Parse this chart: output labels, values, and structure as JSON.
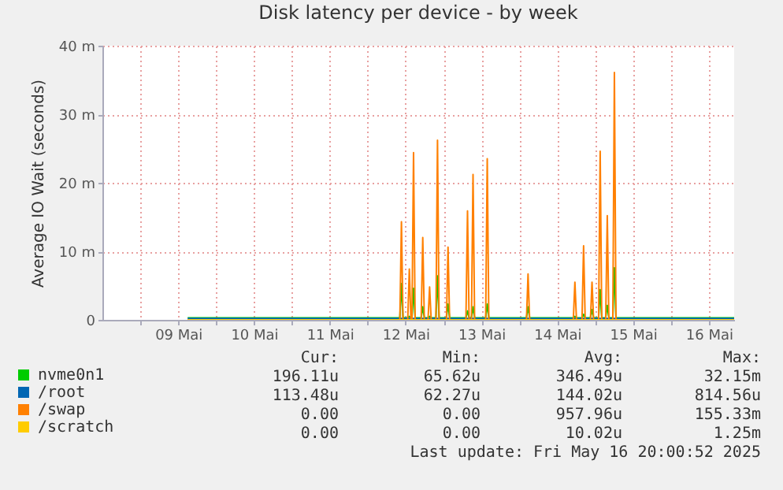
{
  "chart_data": {
    "type": "line",
    "title": "Disk latency per device - by week",
    "ylabel": "Average IO Wait (seconds)",
    "x": [
      "2025-05-09T15:00",
      "2025-05-12T10:10",
      "2025-05-12T10:40",
      "2025-05-12T11:10",
      "2025-05-12T12:40",
      "2025-05-12T13:10",
      "2025-05-12T13:40",
      "2025-05-12T14:00",
      "2025-05-12T14:30",
      "2025-05-12T15:00",
      "2025-05-12T16:55",
      "2025-05-12T17:25",
      "2025-05-12T17:55",
      "2025-05-12T19:05",
      "2025-05-12T19:35",
      "2025-05-12T20:05",
      "2025-05-12T21:35",
      "2025-05-12T22:05",
      "2025-05-12T22:35",
      "2025-05-13T00:55",
      "2025-05-13T01:25",
      "2025-05-13T01:55",
      "2025-05-13T07:05",
      "2025-05-13T07:35",
      "2025-05-13T08:05",
      "2025-05-13T08:50",
      "2025-05-13T09:20",
      "2025-05-13T09:50",
      "2025-05-13T13:20",
      "2025-05-13T13:50",
      "2025-05-13T14:20",
      "2025-05-14T02:15",
      "2025-05-14T02:45",
      "2025-05-14T03:15",
      "2025-05-14T17:05",
      "2025-05-14T17:35",
      "2025-05-14T18:05",
      "2025-05-14T19:50",
      "2025-05-14T20:20",
      "2025-05-14T20:50",
      "2025-05-14T22:30",
      "2025-05-14T23:00",
      "2025-05-14T23:30",
      "2025-05-15T01:05",
      "2025-05-15T01:35",
      "2025-05-15T02:05",
      "2025-05-15T03:20",
      "2025-05-15T03:50",
      "2025-05-15T04:20",
      "2025-05-15T05:35",
      "2025-05-15T06:05",
      "2025-05-15T06:35",
      "2025-05-16T20:00"
    ],
    "series": [
      {
        "name": "nvme0n1",
        "color": "#00cc00",
        "values": [
          0.3,
          0.3,
          5.3,
          0.3,
          0.3,
          0.5,
          0.3,
          0.3,
          4.6,
          0.3,
          0.3,
          1.9,
          0.3,
          0.3,
          0.5,
          0.3,
          0.3,
          6.4,
          0.3,
          0.3,
          2.3,
          0.3,
          0.3,
          1.3,
          0.3,
          0.3,
          1.9,
          0.3,
          0.3,
          2.3,
          0.3,
          0.3,
          1.9,
          0.3,
          0.3,
          0.5,
          0.3,
          0.3,
          0.8,
          0.3,
          0.3,
          1.5,
          0.3,
          0.3,
          4.4,
          0.3,
          0.3,
          2.1,
          0.3,
          0.3,
          7.6,
          0.3,
          0.3
        ]
      },
      {
        "name": "/root",
        "color": "#0066b3",
        "values": [
          0.2,
          0.2,
          0.2,
          0.2,
          0.2,
          0.2,
          0.2,
          0.2,
          0.2,
          0.2,
          0.2,
          0.2,
          0.2,
          0.2,
          0.2,
          0.2,
          0.2,
          0.2,
          0.2,
          0.2,
          0.2,
          0.2,
          0.2,
          0.2,
          0.2,
          0.2,
          0.2,
          0.2,
          0.2,
          0.2,
          0.2,
          0.2,
          0.2,
          0.2,
          0.2,
          0.2,
          0.2,
          0.2,
          0.2,
          0.2,
          0.2,
          0.2,
          0.2,
          0.2,
          0.2,
          0.2,
          0.2,
          0.2,
          0.2,
          0.2,
          0.2,
          0.2,
          0.2
        ]
      },
      {
        "name": "/swap",
        "color": "#ff8000",
        "values": [
          0,
          0,
          14.3,
          0,
          0,
          7.4,
          0,
          0,
          24.4,
          0,
          0,
          12.0,
          0,
          0,
          4.8,
          0,
          0,
          26.2,
          0,
          0,
          10.6,
          0,
          0,
          15.9,
          0,
          0,
          21.2,
          0,
          0,
          23.5,
          0,
          0,
          6.7,
          0,
          0,
          5.5,
          0,
          0,
          10.8,
          0,
          0,
          5.5,
          0,
          0,
          24.6,
          0,
          0,
          15.2,
          0,
          0,
          36.1,
          0,
          0
        ]
      },
      {
        "name": "/scratch",
        "color": "#ffcc00",
        "values": [
          0,
          0,
          0,
          0,
          0,
          0,
          0,
          0,
          0,
          0,
          0,
          0,
          0,
          0,
          0,
          0,
          0,
          0,
          0,
          0,
          0,
          0,
          0,
          0,
          0,
          0,
          0,
          0,
          0,
          0,
          0,
          0,
          0,
          0,
          0,
          0,
          0,
          0,
          0,
          0,
          0,
          0,
          0,
          0,
          0,
          0,
          0,
          0,
          0,
          0,
          0,
          0,
          0
        ]
      }
    ],
    "xlim": [
      "2025-05-08T12:00",
      "2025-05-16T20:00"
    ],
    "xticks": [
      {
        "value": "2025-05-09T00:00",
        "label": null
      },
      {
        "value": "2025-05-09T12:00",
        "label": "09 Mai"
      },
      {
        "value": "2025-05-10T00:00",
        "label": null
      },
      {
        "value": "2025-05-10T12:00",
        "label": "10 Mai"
      },
      {
        "value": "2025-05-11T00:00",
        "label": null
      },
      {
        "value": "2025-05-11T12:00",
        "label": "11 Mai"
      },
      {
        "value": "2025-05-12T00:00",
        "label": null
      },
      {
        "value": "2025-05-12T12:00",
        "label": "12 Mai"
      },
      {
        "value": "2025-05-13T00:00",
        "label": null
      },
      {
        "value": "2025-05-13T12:00",
        "label": "13 Mai"
      },
      {
        "value": "2025-05-14T00:00",
        "label": null
      },
      {
        "value": "2025-05-14T12:00",
        "label": "14 Mai"
      },
      {
        "value": "2025-05-15T00:00",
        "label": null
      },
      {
        "value": "2025-05-15T12:00",
        "label": "15 Mai"
      },
      {
        "value": "2025-05-16T00:00",
        "label": null
      },
      {
        "value": "2025-05-16T12:00",
        "label": "16 Mai"
      }
    ],
    "ylim": [
      0,
      40
    ],
    "yticks": [
      0,
      {
        "value": 10,
        "label": "10 m"
      },
      {
        "value": 20,
        "label": "20 m"
      },
      {
        "value": 30,
        "label": "30 m"
      },
      {
        "value": 40,
        "label": "40 m"
      }
    ],
    "grid": true,
    "legend": "bottom left",
    "annotations": [
      "Cur:",
      "Min:",
      "Avg:",
      "Max:",
      "196.11u",
      "65.62u",
      "346.49u",
      "32.15m",
      "113.48u",
      "62.27u",
      "144.02u",
      "814.56u",
      "0.00",
      "0.00",
      "957.96u",
      "155.33m",
      "0.00",
      "0.00",
      "10.02u",
      "1.25m",
      "Last update: Fri May 16 20:00:52 2025"
    ]
  }
}
